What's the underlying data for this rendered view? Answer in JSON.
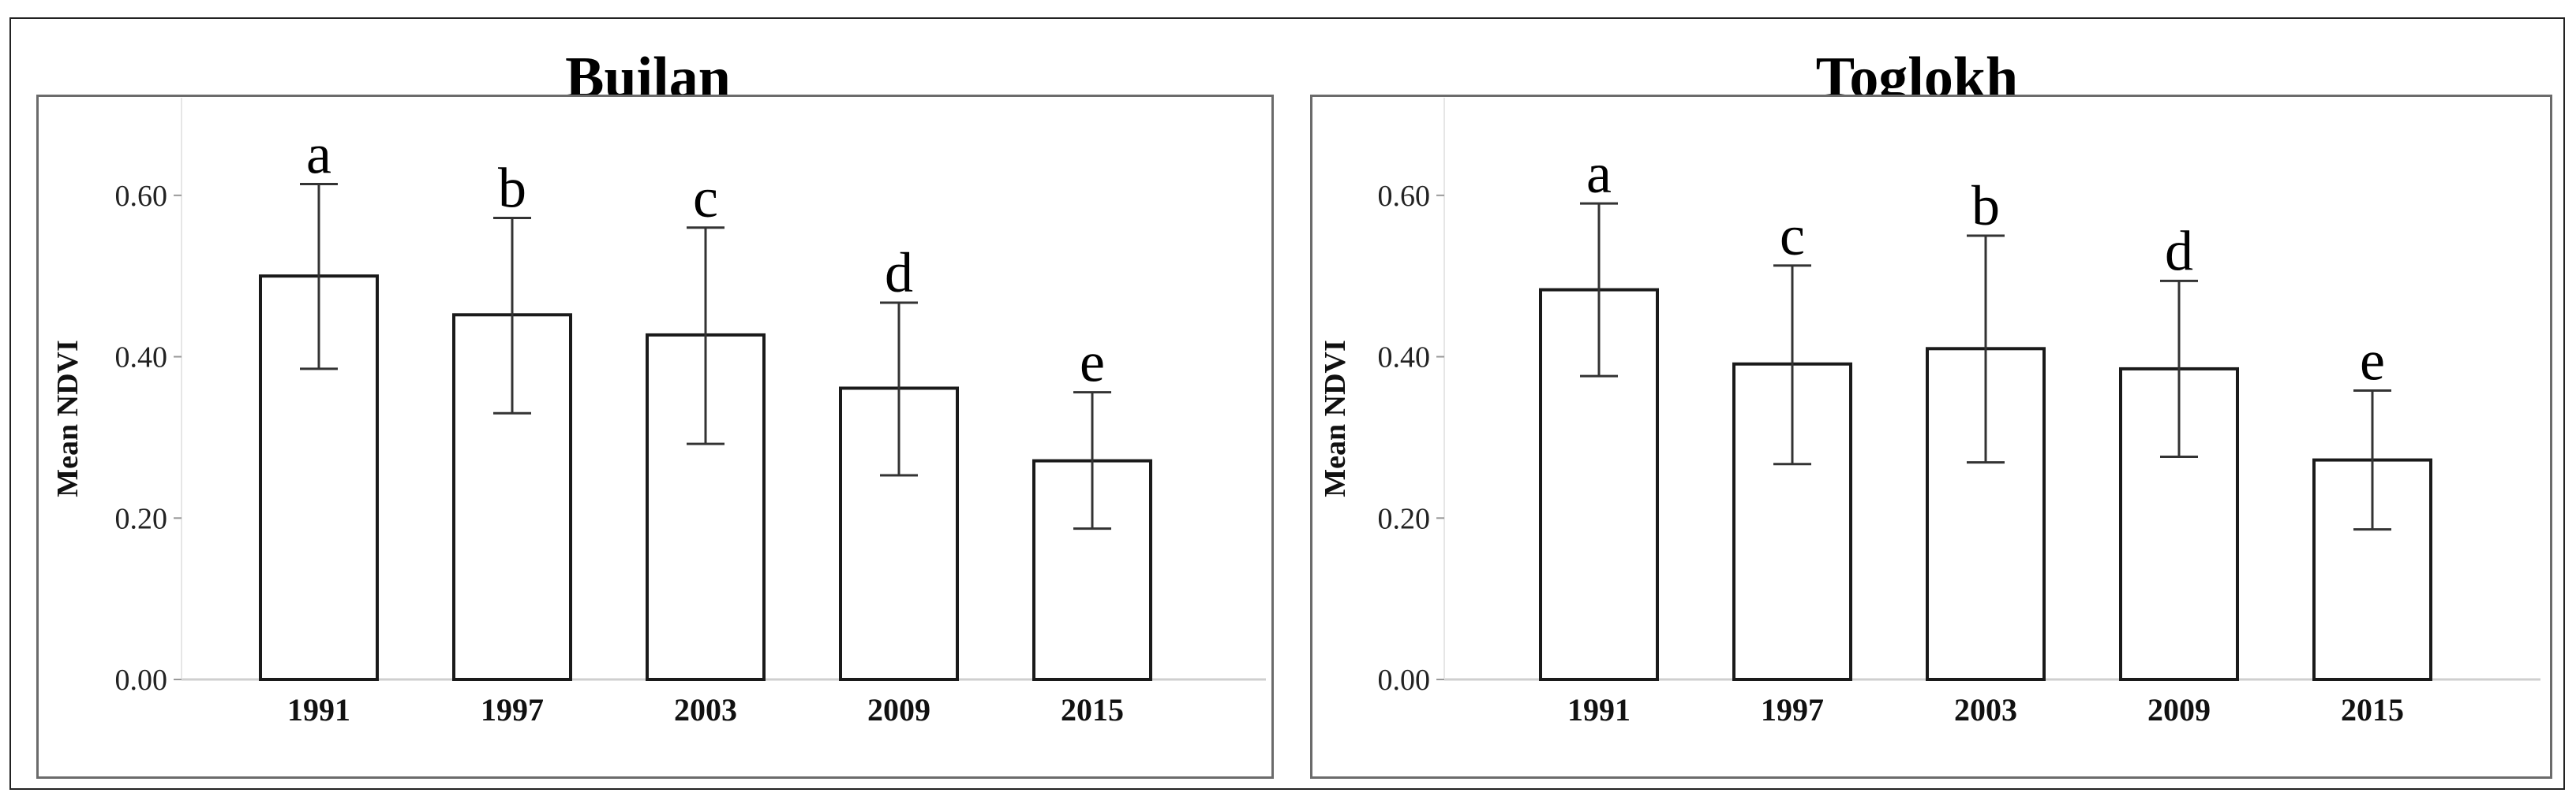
{
  "chart_data": [
    {
      "type": "bar",
      "title": "Builan",
      "ylabel": "Mean NDVI",
      "xlabel": "",
      "categories": [
        "1991",
        "1997",
        "2003",
        "2009",
        "2015"
      ],
      "values": [
        0.5,
        0.452,
        0.427,
        0.361,
        0.271
      ],
      "error_upper": [
        0.614,
        0.572,
        0.56,
        0.467,
        0.356
      ],
      "error_lower": [
        0.385,
        0.33,
        0.292,
        0.253,
        0.187
      ],
      "significance_letters": [
        "a",
        "b",
        "c",
        "d",
        "e"
      ],
      "yticks": [
        "0.00",
        "0.20",
        "0.40",
        "0.60"
      ],
      "ylim": [
        0,
        0.72
      ],
      "grid": false
    },
    {
      "type": "bar",
      "title": "Toglokh",
      "ylabel": "Mean NDVI",
      "xlabel": "",
      "categories": [
        "1991",
        "1997",
        "2003",
        "2009",
        "2015"
      ],
      "values": [
        0.483,
        0.391,
        0.41,
        0.385,
        0.272
      ],
      "error_upper": [
        0.59,
        0.513,
        0.55,
        0.494,
        0.358
      ],
      "error_lower": [
        0.376,
        0.267,
        0.269,
        0.276,
        0.186
      ],
      "significance_letters": [
        "a",
        "c",
        "b",
        "d",
        "e"
      ],
      "yticks": [
        "0.00",
        "0.20",
        "0.40",
        "0.60"
      ],
      "ylim": [
        0,
        0.72
      ],
      "grid": false
    }
  ],
  "colors": {
    "bar_fill": "#ffffff",
    "bar_stroke": "#1a1a1a",
    "frame": "#6b6b6b"
  }
}
